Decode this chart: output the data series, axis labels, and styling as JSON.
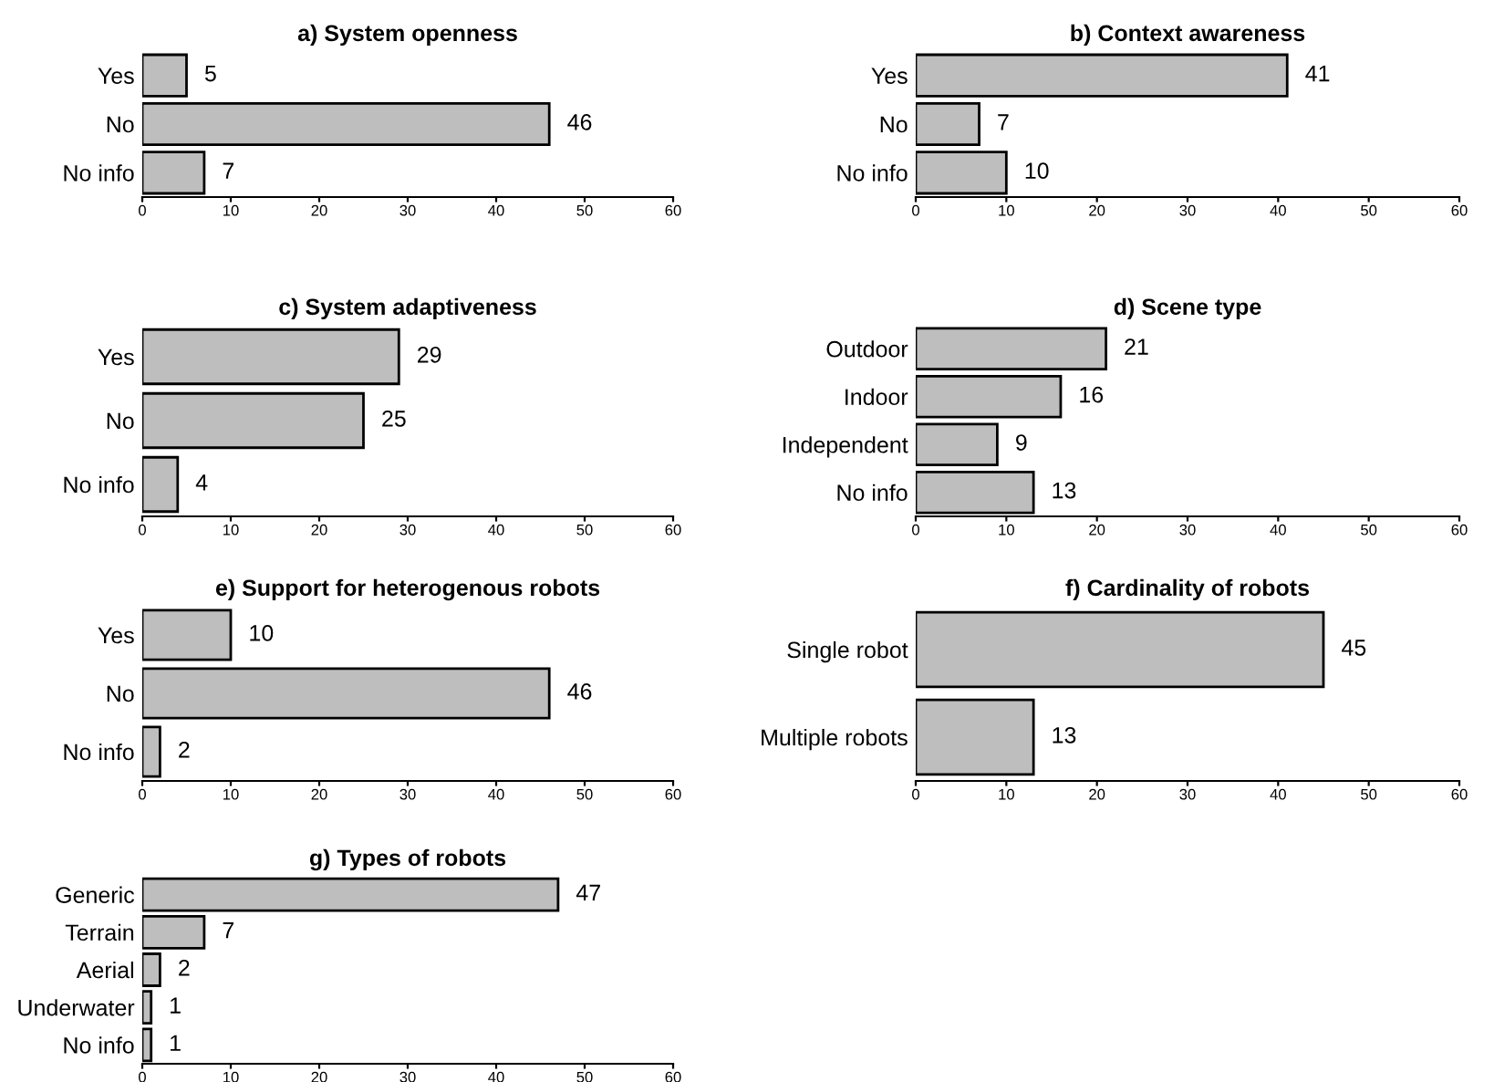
{
  "chart_data": [
    {
      "type": "bar",
      "orientation": "horizontal",
      "title": "a) System openness",
      "categories": [
        "Yes",
        "No",
        "No info"
      ],
      "values": [
        5,
        46,
        7
      ],
      "color": "#bebebe",
      "xlim": [
        0,
        60
      ],
      "xticks": [
        0,
        10,
        20,
        30,
        40,
        50,
        60
      ],
      "data_labels": true,
      "grid": false,
      "legend": false
    },
    {
      "type": "bar",
      "orientation": "horizontal",
      "title": "b) Context awareness",
      "categories": [
        "Yes",
        "No",
        "No info"
      ],
      "values": [
        41,
        7,
        10
      ],
      "color": "#bebebe",
      "xlim": [
        0,
        60
      ],
      "xticks": [
        0,
        10,
        20,
        30,
        40,
        50,
        60
      ],
      "data_labels": true,
      "grid": false,
      "legend": false
    },
    {
      "type": "bar",
      "orientation": "horizontal",
      "title": "c) System adaptiveness",
      "categories": [
        "Yes",
        "No",
        "No info"
      ],
      "values": [
        29,
        25,
        4
      ],
      "color": "#bebebe",
      "xlim": [
        0,
        60
      ],
      "xticks": [
        0,
        10,
        20,
        30,
        40,
        50,
        60
      ],
      "data_labels": true,
      "grid": false,
      "legend": false
    },
    {
      "type": "bar",
      "orientation": "horizontal",
      "title": "d) Scene type",
      "categories": [
        "Outdoor",
        "Indoor",
        "Independent",
        "No info"
      ],
      "values": [
        21,
        16,
        9,
        13
      ],
      "color": "#bebebe",
      "xlim": [
        0,
        60
      ],
      "xticks": [
        0,
        10,
        20,
        30,
        40,
        50,
        60
      ],
      "data_labels": true,
      "grid": false,
      "legend": false
    },
    {
      "type": "bar",
      "orientation": "horizontal",
      "title": "e) Support for heterogenous robots",
      "categories": [
        "Yes",
        "No",
        "No info"
      ],
      "values": [
        10,
        46,
        2
      ],
      "color": "#bebebe",
      "xlim": [
        0,
        60
      ],
      "xticks": [
        0,
        10,
        20,
        30,
        40,
        50,
        60
      ],
      "data_labels": true,
      "grid": false,
      "legend": false
    },
    {
      "type": "bar",
      "orientation": "horizontal",
      "title": "f) Cardinality of robots",
      "categories": [
        "Single robot",
        "Multiple robots"
      ],
      "values": [
        45,
        13
      ],
      "color": "#bebebe",
      "xlim": [
        0,
        60
      ],
      "xticks": [
        0,
        10,
        20,
        30,
        40,
        50,
        60
      ],
      "data_labels": true,
      "grid": false,
      "legend": false
    },
    {
      "type": "bar",
      "orientation": "horizontal",
      "title": "g) Types of robots",
      "categories": [
        "Generic",
        "Terrain",
        "Aerial",
        "Underwater",
        "No info"
      ],
      "values": [
        47,
        7,
        2,
        1,
        1
      ],
      "color": "#bebebe",
      "xlim": [
        0,
        60
      ],
      "xticks": [
        0,
        10,
        20,
        30,
        40,
        50,
        60
      ],
      "data_labels": true,
      "grid": false,
      "legend": false
    }
  ]
}
